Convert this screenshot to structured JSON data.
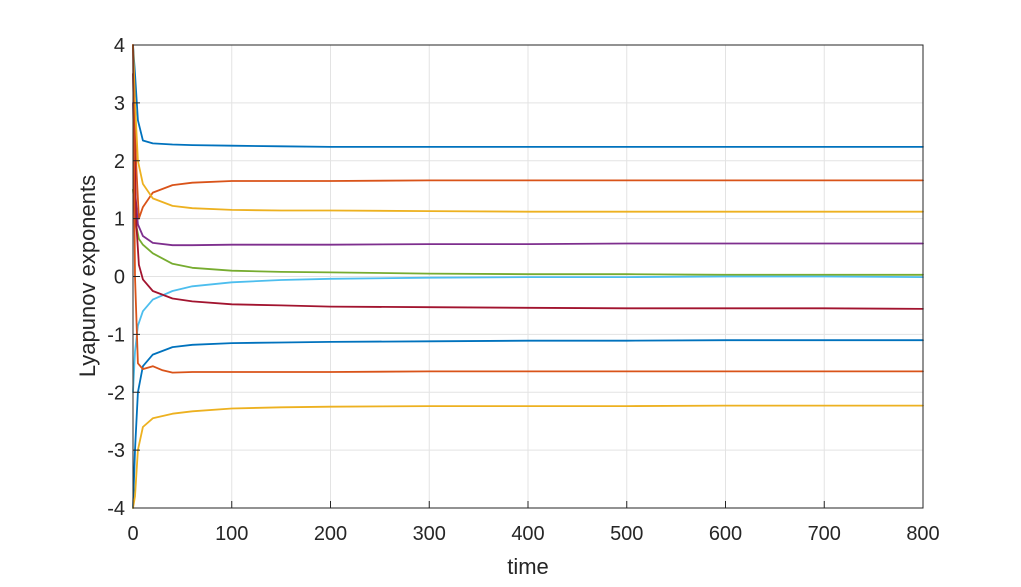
{
  "chart_data": {
    "type": "line",
    "title": "",
    "xlabel": "time",
    "ylabel": "Lyapunov exponents",
    "xlim": [
      0,
      800
    ],
    "ylim": [
      -4,
      4
    ],
    "xticks": [
      0,
      100,
      200,
      300,
      400,
      500,
      600,
      700,
      800
    ],
    "yticks": [
      -4,
      -3,
      -2,
      -1,
      0,
      1,
      2,
      3,
      4
    ],
    "xtick_labels": [
      "0",
      "100",
      "200",
      "300",
      "400",
      "500",
      "600",
      "700",
      "800"
    ],
    "ytick_labels": [
      "-4",
      "-3",
      "-2",
      "-1",
      "0",
      "1",
      "2",
      "3",
      "4"
    ],
    "grid": true,
    "legend": "none",
    "series": [
      {
        "color": "#0072BD",
        "x": [
          0,
          2,
          5,
          10,
          20,
          40,
          60,
          100,
          150,
          200,
          300,
          400,
          500,
          600,
          700,
          800
        ],
        "y": [
          4.0,
          3.5,
          2.7,
          2.35,
          2.3,
          2.28,
          2.27,
          2.26,
          2.25,
          2.24,
          2.24,
          2.24,
          2.24,
          2.24,
          2.24,
          2.24
        ]
      },
      {
        "color": "#D95319",
        "x": [
          0,
          3,
          6,
          10,
          20,
          40,
          60,
          100,
          150,
          200,
          300,
          400,
          500,
          600,
          700,
          800
        ],
        "y": [
          4.0,
          2.0,
          1.0,
          1.2,
          1.45,
          1.58,
          1.62,
          1.65,
          1.65,
          1.65,
          1.66,
          1.66,
          1.66,
          1.66,
          1.66,
          1.66
        ]
      },
      {
        "color": "#EDB120",
        "x": [
          0,
          2,
          5,
          10,
          20,
          40,
          60,
          100,
          150,
          200,
          300,
          400,
          500,
          600,
          700,
          800
        ],
        "y": [
          4.0,
          3.0,
          2.0,
          1.6,
          1.35,
          1.22,
          1.18,
          1.15,
          1.14,
          1.14,
          1.13,
          1.12,
          1.12,
          1.12,
          1.12,
          1.12
        ]
      },
      {
        "color": "#7E2F8E",
        "x": [
          0,
          2,
          5,
          10,
          20,
          40,
          60,
          100,
          150,
          200,
          300,
          400,
          500,
          600,
          700,
          800
        ],
        "y": [
          3.0,
          1.5,
          0.9,
          0.7,
          0.58,
          0.54,
          0.54,
          0.55,
          0.55,
          0.55,
          0.56,
          0.56,
          0.57,
          0.57,
          0.57,
          0.57
        ]
      },
      {
        "color": "#77AC30",
        "x": [
          0,
          3,
          6,
          10,
          20,
          40,
          60,
          100,
          150,
          200,
          300,
          400,
          500,
          600,
          700,
          800
        ],
        "y": [
          1.5,
          0.9,
          0.65,
          0.55,
          0.4,
          0.22,
          0.15,
          0.1,
          0.08,
          0.07,
          0.05,
          0.04,
          0.04,
          0.03,
          0.03,
          0.03
        ]
      },
      {
        "color": "#4DBEEE",
        "x": [
          0,
          2,
          5,
          10,
          20,
          40,
          60,
          100,
          150,
          200,
          300,
          400,
          500,
          600,
          700,
          800
        ],
        "y": [
          -2.0,
          -1.3,
          -0.85,
          -0.6,
          -0.4,
          -0.25,
          -0.17,
          -0.1,
          -0.06,
          -0.04,
          -0.02,
          -0.01,
          -0.01,
          0.0,
          0.0,
          -0.01
        ]
      },
      {
        "color": "#A2142F",
        "x": [
          0,
          3,
          6,
          10,
          20,
          40,
          60,
          100,
          150,
          200,
          300,
          400,
          500,
          600,
          700,
          800
        ],
        "y": [
          3.5,
          1.0,
          0.2,
          -0.05,
          -0.25,
          -0.38,
          -0.43,
          -0.48,
          -0.5,
          -0.52,
          -0.53,
          -0.54,
          -0.55,
          -0.55,
          -0.55,
          -0.56
        ]
      },
      {
        "color": "#0072BD",
        "x": [
          0,
          2,
          5,
          10,
          20,
          40,
          60,
          100,
          150,
          200,
          300,
          400,
          500,
          600,
          700,
          800
        ],
        "y": [
          -4.0,
          -3.0,
          -2.0,
          -1.55,
          -1.35,
          -1.22,
          -1.18,
          -1.15,
          -1.14,
          -1.13,
          -1.12,
          -1.11,
          -1.11,
          -1.1,
          -1.1,
          -1.1
        ]
      },
      {
        "color": "#D95319",
        "x": [
          0,
          2,
          5,
          10,
          20,
          30,
          40,
          60,
          100,
          150,
          200,
          300,
          400,
          500,
          600,
          700,
          800
        ],
        "y": [
          4.0,
          0.0,
          -1.5,
          -1.6,
          -1.55,
          -1.62,
          -1.66,
          -1.65,
          -1.65,
          -1.65,
          -1.65,
          -1.64,
          -1.64,
          -1.64,
          -1.64,
          -1.64,
          -1.64
        ]
      },
      {
        "color": "#EDB120",
        "x": [
          0,
          2,
          5,
          10,
          20,
          40,
          60,
          100,
          150,
          200,
          300,
          400,
          500,
          600,
          700,
          800
        ],
        "y": [
          -4.0,
          -3.8,
          -3.0,
          -2.6,
          -2.45,
          -2.37,
          -2.33,
          -2.28,
          -2.26,
          -2.25,
          -2.24,
          -2.24,
          -2.24,
          -2.23,
          -2.23,
          -2.23
        ]
      }
    ]
  }
}
